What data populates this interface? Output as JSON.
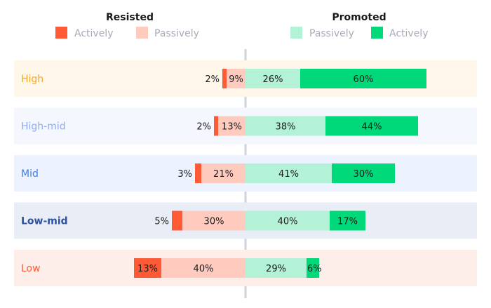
{
  "chart_data": {
    "type": "bar",
    "orientation": "horizontal-diverging-stacked",
    "groups": [
      {
        "name": "Resisted",
        "series": [
          "Actively",
          "Passively"
        ]
      },
      {
        "name": "Promoted",
        "series": [
          "Passively",
          "Actively"
        ]
      }
    ],
    "categories": [
      "High",
      "High-mid",
      "Mid",
      "Low-mid",
      "Low"
    ],
    "category_colors": [
      "#f5a623",
      "#8fabf0",
      "#3d7fe8",
      "#2d50a0",
      "#ff5a36"
    ],
    "category_backgrounds": [
      "#fff7ea",
      "#f4f7fe",
      "#ecf2fe",
      "#e9eef6",
      "#fdeee9"
    ],
    "series": [
      {
        "name": "Resisted Actively",
        "side": "left",
        "color": "#ff5a36",
        "values": [
          2,
          2,
          3,
          5,
          13
        ]
      },
      {
        "name": "Resisted Passively",
        "side": "left",
        "color": "#ffcbbf",
        "values": [
          9,
          13,
          21,
          30,
          40
        ]
      },
      {
        "name": "Promoted Passively",
        "side": "right",
        "color": "#b3f2d6",
        "values": [
          26,
          38,
          41,
          40,
          29
        ]
      },
      {
        "name": "Promoted Actively",
        "side": "right",
        "color": "#00d97a",
        "values": [
          60,
          44,
          30,
          17,
          6
        ]
      }
    ],
    "value_suffix": "%",
    "legend": {
      "placement": "top",
      "resisted_title": "Resisted",
      "promoted_title": "Promoted",
      "actively": "Actively",
      "passively": "Passively"
    },
    "grid": false,
    "center_line_color": "#cfd3da"
  }
}
